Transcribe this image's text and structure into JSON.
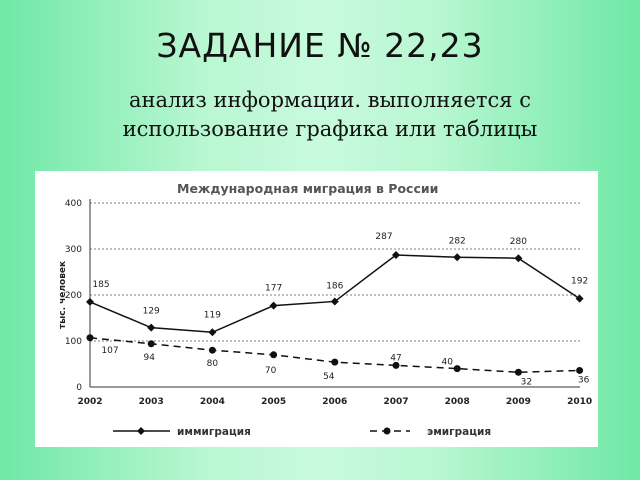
{
  "slide": {
    "title": "ЗАДАНИЕ № 22,23",
    "subtitle_line1": "анализ информации. выполняется с",
    "subtitle_line2": "использование графика или таблицы"
  },
  "chart_data": {
    "type": "line",
    "title": "Международная миграция в России",
    "xlabel": "",
    "ylabel": "тыс. человек",
    "categories": [
      "2002",
      "2003",
      "2004",
      "2005",
      "2006",
      "2007",
      "2008",
      "2009",
      "2010"
    ],
    "ylim": [
      0,
      400
    ],
    "yticks": [
      "0",
      "100",
      "200",
      "300",
      "400"
    ],
    "grid": "horizontal dashed",
    "legend_position": "bottom",
    "series": [
      {
        "name": "иммиграция",
        "style": "solid",
        "marker": "diamond",
        "values": [
          185,
          129,
          119,
          177,
          186,
          287,
          282,
          280,
          192
        ],
        "labels": [
          "185",
          "129",
          "119",
          "177",
          "186",
          "287",
          "282",
          "280",
          "192"
        ]
      },
      {
        "name": "эмиграция",
        "style": "dashed",
        "marker": "circle",
        "values": [
          107,
          94,
          80,
          70,
          54,
          47,
          40,
          32,
          36
        ],
        "labels": [
          "107",
          "94",
          "80",
          "70",
          "54",
          "47",
          "40",
          "32",
          "36"
        ]
      }
    ]
  }
}
